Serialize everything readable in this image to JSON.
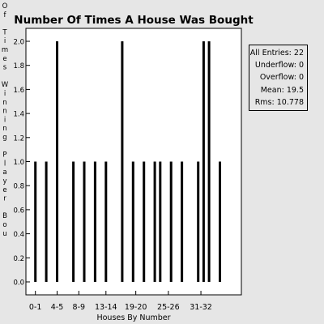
{
  "chart_data": {
    "type": "bar",
    "title": "Number Of Times A House Was Bought",
    "xlabel": "Houses By Number",
    "ylabel": "Of Times Winning Player Bou",
    "x_tick_labels": [
      "0-1",
      "4-5",
      "8-9",
      "13-14",
      "19-20",
      "25-26",
      "31-32"
    ],
    "x_tick_label_positions": [
      1,
      5,
      9,
      14,
      19.5,
      25.5,
      31.5
    ],
    "y_ticks": [
      "0.0",
      "0.2",
      "0.4",
      "0.6",
      "0.8",
      "1.0",
      "1.2",
      "1.4",
      "1.6",
      "1.8",
      "2.0"
    ],
    "ylim": [
      0,
      2.0
    ],
    "xlim": [
      -1,
      39
    ],
    "grid": false,
    "bars": [
      {
        "x": 1,
        "value": 1
      },
      {
        "x": 3,
        "value": 1
      },
      {
        "x": 5,
        "value": 2
      },
      {
        "x": 8,
        "value": 1
      },
      {
        "x": 10,
        "value": 1
      },
      {
        "x": 12,
        "value": 1
      },
      {
        "x": 14,
        "value": 1
      },
      {
        "x": 17,
        "value": 2
      },
      {
        "x": 19,
        "value": 1
      },
      {
        "x": 21,
        "value": 1
      },
      {
        "x": 23,
        "value": 1
      },
      {
        "x": 24,
        "value": 1
      },
      {
        "x": 26,
        "value": 1
      },
      {
        "x": 28,
        "value": 1
      },
      {
        "x": 31,
        "value": 1
      },
      {
        "x": 32,
        "value": 2
      },
      {
        "x": 33,
        "value": 2
      },
      {
        "x": 35,
        "value": 1
      }
    ],
    "stats": {
      "entries_label": "All Entries:",
      "entries": "22",
      "underflow_label": "Underflow:",
      "underflow": "0",
      "overflow_label": "Overflow:",
      "overflow": "0",
      "mean_label": "Mean:",
      "mean": "19.5",
      "rms_label": "Rms:",
      "rms": "10.778"
    },
    "colors": {
      "background": "#e6e6e6",
      "plot_bg": "#ffffff",
      "bar": "#000000",
      "axis": "#000000"
    }
  }
}
